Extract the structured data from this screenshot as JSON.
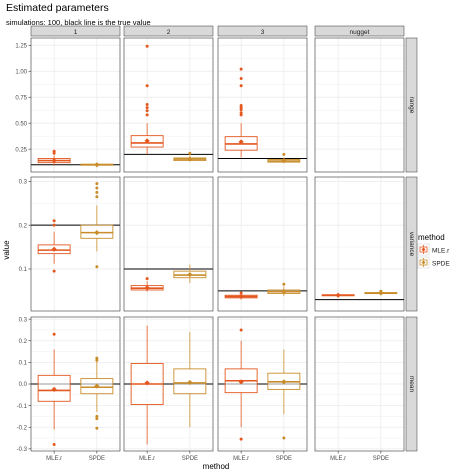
{
  "chart_data": {
    "type": "boxplot",
    "title": "Estimated parameters",
    "subtitle": "simulations: 100, black line is the true value",
    "xlabel": "method",
    "ylabel": "value",
    "categories": [
      "MLE.r",
      "SPDE"
    ],
    "legend": {
      "title": "method",
      "placement": "right",
      "items": [
        "MLE.r",
        "SPDE"
      ]
    },
    "colors": {
      "MLE.r": "#e4571f",
      "SPDE": "#c88d2a",
      "true_line": "#000000",
      "strip": "#d9d9d9",
      "grid": "#ebebeb"
    },
    "facet_columns": [
      "1",
      "2",
      "3",
      "nugget"
    ],
    "facet_rows": [
      {
        "label": "range",
        "ylim": [
          0.03,
          1.32
        ],
        "ticks": [
          0.25,
          0.5,
          0.75,
          1.0,
          1.25
        ],
        "tick_labels": [
          "0.25",
          "0.50",
          "0.75",
          "1.00",
          "1.25"
        ]
      },
      {
        "label": "variance",
        "ylim": [
          0.004,
          0.31
        ],
        "ticks": [
          0.1,
          0.2,
          0.3
        ],
        "tick_labels": [
          "0.1",
          "0.2",
          "0.3"
        ]
      },
      {
        "label": "mean",
        "ylim": [
          -0.31,
          0.31
        ],
        "ticks": [
          -0.3,
          -0.2,
          -0.1,
          0.0,
          0.1,
          0.2,
          0.3
        ],
        "tick_labels": [
          "-0.3",
          "-0.2",
          "-0.1",
          "0.0",
          "0.1",
          "0.2",
          "0.3"
        ]
      }
    ],
    "panels": [
      {
        "row": 0,
        "col": 0,
        "true_value": 0.1,
        "boxes": [
          {
            "method": "MLE.r",
            "q1": 0.12,
            "median": 0.14,
            "q3": 0.16,
            "wlo": 0.09,
            "whi": 0.19,
            "mean": 0.14,
            "outliers": [
              0.21,
              0.23
            ]
          },
          {
            "method": "SPDE",
            "q1": 0.095,
            "median": 0.1,
            "q3": 0.105,
            "wlo": 0.09,
            "whi": 0.115,
            "mean": 0.1,
            "outliers": []
          }
        ]
      },
      {
        "row": 0,
        "col": 1,
        "true_value": 0.2,
        "boxes": [
          {
            "method": "MLE.r",
            "q1": 0.27,
            "median": 0.31,
            "q3": 0.38,
            "wlo": 0.2,
            "whi": 0.5,
            "mean": 0.33,
            "outliers": [
              0.58,
              0.62,
              0.65,
              0.68,
              0.86,
              1.24
            ]
          },
          {
            "method": "SPDE",
            "q1": 0.14,
            "median": 0.155,
            "q3": 0.165,
            "wlo": 0.13,
            "whi": 0.19,
            "mean": 0.155,
            "outliers": [
              0.21
            ]
          }
        ]
      },
      {
        "row": 0,
        "col": 2,
        "true_value": 0.16,
        "boxes": [
          {
            "method": "MLE.r",
            "q1": 0.24,
            "median": 0.3,
            "q3": 0.37,
            "wlo": 0.17,
            "whi": 0.5,
            "mean": 0.32,
            "outliers": [
              0.58,
              0.6,
              0.63,
              0.65,
              0.67,
              0.86,
              0.93,
              1.02
            ]
          },
          {
            "method": "SPDE",
            "q1": 0.125,
            "median": 0.135,
            "q3": 0.15,
            "wlo": 0.115,
            "whi": 0.17,
            "mean": 0.14,
            "outliers": [
              0.2
            ]
          }
        ]
      },
      {
        "row": 0,
        "col": 3,
        "true_value": null,
        "boxes": []
      },
      {
        "row": 1,
        "col": 0,
        "true_value": 0.2,
        "boxes": [
          {
            "method": "MLE.r",
            "q1": 0.135,
            "median": 0.143,
            "q3": 0.155,
            "wlo": 0.112,
            "whi": 0.185,
            "mean": 0.145,
            "outliers": [
              0.095,
              0.2,
              0.21
            ]
          },
          {
            "method": "SPDE",
            "q1": 0.17,
            "median": 0.183,
            "q3": 0.2,
            "wlo": 0.14,
            "whi": 0.245,
            "mean": 0.183,
            "outliers": [
              0.105,
              0.265,
              0.275,
              0.285,
              0.295
            ]
          }
        ]
      },
      {
        "row": 1,
        "col": 1,
        "true_value": 0.1,
        "boxes": [
          {
            "method": "MLE.r",
            "q1": 0.052,
            "median": 0.056,
            "q3": 0.062,
            "wlo": 0.048,
            "whi": 0.072,
            "mean": 0.057,
            "outliers": [
              0.078
            ]
          },
          {
            "method": "SPDE",
            "q1": 0.08,
            "median": 0.086,
            "q3": 0.095,
            "wlo": 0.068,
            "whi": 0.11,
            "mean": 0.087,
            "outliers": []
          }
        ]
      },
      {
        "row": 1,
        "col": 2,
        "true_value": 0.05,
        "boxes": [
          {
            "method": "MLE.r",
            "q1": 0.034,
            "median": 0.037,
            "q3": 0.04,
            "wlo": 0.03,
            "whi": 0.043,
            "mean": 0.037,
            "outliers": [
              0.045
            ]
          },
          {
            "method": "SPDE",
            "q1": 0.044,
            "median": 0.048,
            "q3": 0.052,
            "wlo": 0.038,
            "whi": 0.06,
            "mean": 0.048,
            "outliers": [
              0.065
            ]
          }
        ]
      },
      {
        "row": 1,
        "col": 3,
        "true_value": 0.03,
        "boxes": [
          {
            "method": "MLE.r",
            "q1": 0.039,
            "median": 0.04,
            "q3": 0.041,
            "wlo": 0.038,
            "whi": 0.042,
            "mean": 0.04,
            "outliers": []
          },
          {
            "method": "SPDE",
            "q1": 0.044,
            "median": 0.045,
            "q3": 0.046,
            "wlo": 0.043,
            "whi": 0.047,
            "mean": 0.045,
            "outliers": [
              0.049
            ]
          }
        ]
      },
      {
        "row": 2,
        "col": 0,
        "true_value": 0.0,
        "boxes": [
          {
            "method": "MLE.r",
            "q1": -0.08,
            "median": -0.03,
            "q3": 0.04,
            "wlo": -0.21,
            "whi": 0.16,
            "mean": -0.025,
            "outliers": [
              0.23,
              -0.28
            ]
          },
          {
            "method": "SPDE",
            "q1": -0.045,
            "median": -0.015,
            "q3": 0.025,
            "wlo": -0.13,
            "whi": 0.11,
            "mean": -0.01,
            "outliers": [
              0.12,
              0.11,
              -0.15,
              -0.16,
              -0.205
            ]
          }
        ]
      },
      {
        "row": 2,
        "col": 1,
        "true_value": 0.0,
        "boxes": [
          {
            "method": "MLE.r",
            "q1": -0.095,
            "median": 0.0,
            "q3": 0.095,
            "wlo": -0.28,
            "whi": 0.27,
            "mean": 0.005,
            "outliers": []
          },
          {
            "method": "SPDE",
            "q1": -0.045,
            "median": 0.005,
            "q3": 0.07,
            "wlo": -0.2,
            "whi": 0.24,
            "mean": 0.007,
            "outliers": []
          }
        ]
      },
      {
        "row": 2,
        "col": 2,
        "true_value": 0.0,
        "boxes": [
          {
            "method": "MLE.r",
            "q1": -0.04,
            "median": 0.015,
            "q3": 0.07,
            "wlo": -0.2,
            "whi": 0.2,
            "mean": 0.01,
            "outliers": [
              -0.255,
              0.25
            ]
          },
          {
            "method": "SPDE",
            "q1": -0.025,
            "median": 0.01,
            "q3": 0.05,
            "wlo": -0.14,
            "whi": 0.16,
            "mean": 0.01,
            "outliers": [
              -0.25
            ]
          }
        ]
      },
      {
        "row": 2,
        "col": 3,
        "true_value": null,
        "boxes": []
      }
    ]
  }
}
